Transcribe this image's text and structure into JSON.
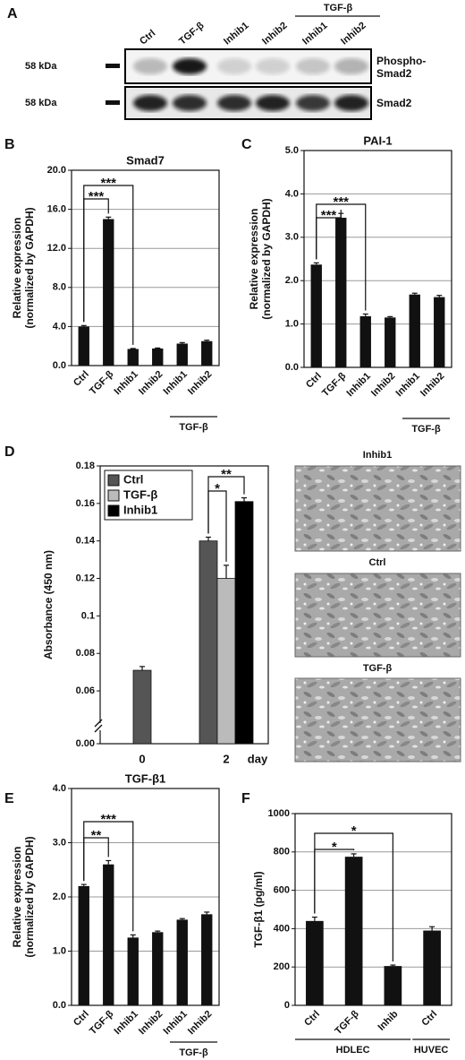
{
  "blot": {
    "panel": "A",
    "lanes": [
      "Ctrl",
      "TGF-β",
      "Inhib1",
      "Inhib2",
      "Inhib1",
      "Inhib2"
    ],
    "group_label": "TGF-β",
    "rows": [
      {
        "size": "58 kDa",
        "name": "Phospho-Smad2"
      },
      {
        "size": "58 kDa",
        "name": "Smad2"
      }
    ]
  },
  "micrographs": {
    "labels": [
      "Inhib1",
      "Ctrl",
      "TGF-β"
    ]
  },
  "chart_data": [
    {
      "type": "bar",
      "panel": "B",
      "title": "Smad7",
      "ylabel": [
        "Relative expression",
        "(normalized by GAPDH)"
      ],
      "categories": [
        "Ctrl",
        "TGF-β",
        "Inhib1",
        "Inhib2",
        "Inhib1",
        "Inhib2"
      ],
      "group_labels": [
        "TGF-β"
      ],
      "values": [
        4.0,
        15.0,
        1.7,
        1.75,
        2.25,
        2.5
      ],
      "errors": [
        0.1,
        0.2,
        0.05,
        0.05,
        0.1,
        0.1
      ],
      "color": "#111111",
      "ylim": [
        0,
        20
      ],
      "yticks": [
        {
          "value": 0,
          "label": "0.0"
        },
        {
          "value": 4,
          "label": "4.0"
        },
        {
          "value": 8,
          "label": "8.0"
        },
        {
          "value": 12,
          "label": "12.0"
        },
        {
          "value": 16,
          "label": "16.0"
        },
        {
          "value": 20,
          "label": "20.0"
        }
      ],
      "grid": true,
      "annotations": [
        "***",
        "***"
      ]
    },
    {
      "type": "bar",
      "panel": "C",
      "title": "PAI-1",
      "ylabel": [
        "Relative expression",
        "(normalized by GAPDH)"
      ],
      "categories": [
        "Ctrl",
        "TGF-β",
        "Inhib1",
        "Inhib2",
        "Inhib1",
        "Inhib2"
      ],
      "group_labels": [
        "TGF-β"
      ],
      "values": [
        2.37,
        3.45,
        1.18,
        1.15,
        1.68,
        1.62
      ],
      "errors": [
        0.04,
        0.1,
        0.05,
        0.02,
        0.03,
        0.04
      ],
      "color": "#111111",
      "ylim": [
        0,
        5
      ],
      "yticks": [
        {
          "value": 0,
          "label": "0.0"
        },
        {
          "value": 1,
          "label": "1.0"
        },
        {
          "value": 2,
          "label": "2.0"
        },
        {
          "value": 3,
          "label": "3.0"
        },
        {
          "value": 4,
          "label": "4.0"
        },
        {
          "value": 5,
          "label": "5.0"
        }
      ],
      "grid": true,
      "annotations": [
        "***",
        "***"
      ]
    },
    {
      "type": "grouped_bar",
      "panel": "D",
      "ylabel": [
        "Absorbance (450 nm)"
      ],
      "categories": [
        "0",
        "2"
      ],
      "xlabel": "day",
      "series": [
        {
          "name": "Ctrl",
          "color": "#555555",
          "values": [
            0.071,
            0.14
          ],
          "errors": [
            0.002,
            0.002
          ]
        },
        {
          "name": "TGF-β",
          "color": "#bbbbbb",
          "values": [
            null,
            0.12
          ],
          "errors": [
            null,
            0.007
          ]
        },
        {
          "name": "Inhib1",
          "color": "#000000",
          "values": [
            null,
            0.161
          ],
          "errors": [
            null,
            0.002
          ]
        }
      ],
      "ylim": [
        0,
        0.18
      ],
      "ybreak": [
        0,
        0.05
      ],
      "yticks": [
        {
          "value": 0,
          "label": "0.00"
        },
        0.06,
        0.08,
        0.1,
        0.12,
        0.14,
        0.16,
        0.18
      ],
      "grid": false,
      "legend": "top-left",
      "annotations": [
        "*",
        "**"
      ]
    },
    {
      "type": "bar",
      "panel": "E",
      "title": "TGF-β1",
      "ylabel": [
        "Relative expression",
        "(normalized by GAPDH)"
      ],
      "categories": [
        "Ctrl",
        "TGF-β",
        "Inhib1",
        "Inhib2",
        "Inhib1",
        "Inhib2"
      ],
      "group_labels": [
        "TGF-β"
      ],
      "values": [
        2.2,
        2.6,
        1.25,
        1.35,
        1.58,
        1.68
      ],
      "errors": [
        0.03,
        0.07,
        0.05,
        0.02,
        0.02,
        0.04
      ],
      "color": "#111111",
      "ylim": [
        0,
        4
      ],
      "yticks": [
        {
          "value": 0,
          "label": "0.0"
        },
        {
          "value": 1,
          "label": "1.0"
        },
        {
          "value": 2,
          "label": "2.0"
        },
        {
          "value": 3,
          "label": "3.0"
        },
        {
          "value": 4,
          "label": "4.0"
        }
      ],
      "grid": true,
      "annotations": [
        "**",
        "***"
      ]
    },
    {
      "type": "bar",
      "panel": "F",
      "ylabel": [
        "TGF-β1 (pg/ml)"
      ],
      "categories": [
        "Ctrl",
        "TGF-β",
        "Inhib",
        "Ctrl"
      ],
      "group_labels": [
        "HDLEC",
        "HUVEC"
      ],
      "values": [
        440,
        775,
        205,
        390
      ],
      "errors": [
        20,
        15,
        5,
        20
      ],
      "color": "#111111",
      "ylim": [
        0,
        1000
      ],
      "yticks": [
        0,
        200,
        400,
        600,
        800,
        1000
      ],
      "grid": true,
      "annotations": [
        "*",
        "*"
      ]
    }
  ]
}
